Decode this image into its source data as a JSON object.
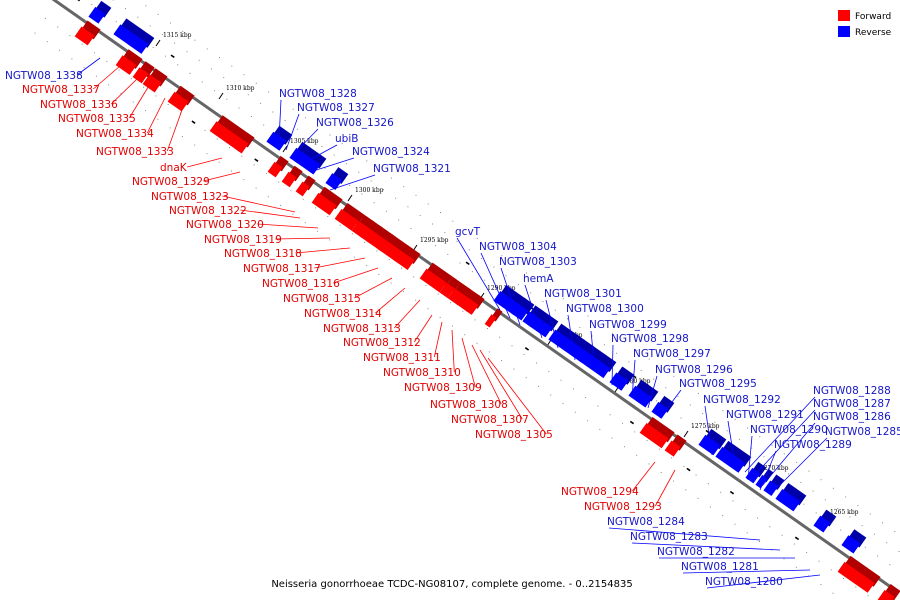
{
  "caption": "Neisseria gonorrhoeae TCDC-NG08107, complete genome. - 0..2154835",
  "legend": {
    "forward": "Forward",
    "reverse": "Reverse"
  },
  "colors": {
    "forward": "#ff0000",
    "reverse": "#0000ff",
    "forward_label": "#e00000",
    "reverse_label": "#1515c8",
    "axis": "#666666"
  },
  "ticks": [
    "1315 kbp",
    "1310 kbp",
    "1305 kbp",
    "1300 kbp",
    "1295 kbp",
    "1290 kbp",
    "1285 kbp",
    "1280 kbp",
    "1275 kbp",
    "1270 kbp",
    "1265 kbp"
  ],
  "reverse_genes": [
    "NGTW08_1338",
    "NGTW08_1328",
    "NGTW08_1327",
    "NGTW08_1326",
    "ubiB",
    "NGTW08_1324",
    "NGTW08_1321",
    "gcvT",
    "NGTW08_1304",
    "NGTW08_1303",
    "hemA",
    "NGTW08_1301",
    "NGTW08_1300",
    "NGTW08_1299",
    "NGTW08_1298",
    "NGTW08_1297",
    "NGTW08_1296",
    "NGTW08_1295",
    "NGTW08_1292",
    "NGTW08_1291",
    "NGTW08_1290",
    "NGTW08_1289",
    "NGTW08_1288",
    "NGTW08_1287",
    "NGTW08_1286",
    "NGTW08_1285",
    "NGTW08_1284",
    "NGTW08_1283",
    "NGTW08_1282",
    "NGTW08_1281",
    "NGTW08_1280"
  ],
  "forward_genes": [
    "NGTW08_1337",
    "NGTW08_1336",
    "NGTW08_1335",
    "NGTW08_1334",
    "NGTW08_1333",
    "dnaK",
    "NGTW08_1329",
    "NGTW08_1323",
    "NGTW08_1322",
    "NGTW08_1320",
    "NGTW08_1319",
    "NGTW08_1318",
    "NGTW08_1317",
    "NGTW08_1316",
    "NGTW08_1315",
    "NGTW08_1314",
    "NGTW08_1313",
    "NGTW08_1312",
    "NGTW08_1311",
    "NGTW08_1310",
    "NGTW08_1309",
    "NGTW08_1308",
    "NGTW08_1307",
    "NGTW08_1305",
    "NGTW08_1294",
    "NGTW08_1293"
  ]
}
